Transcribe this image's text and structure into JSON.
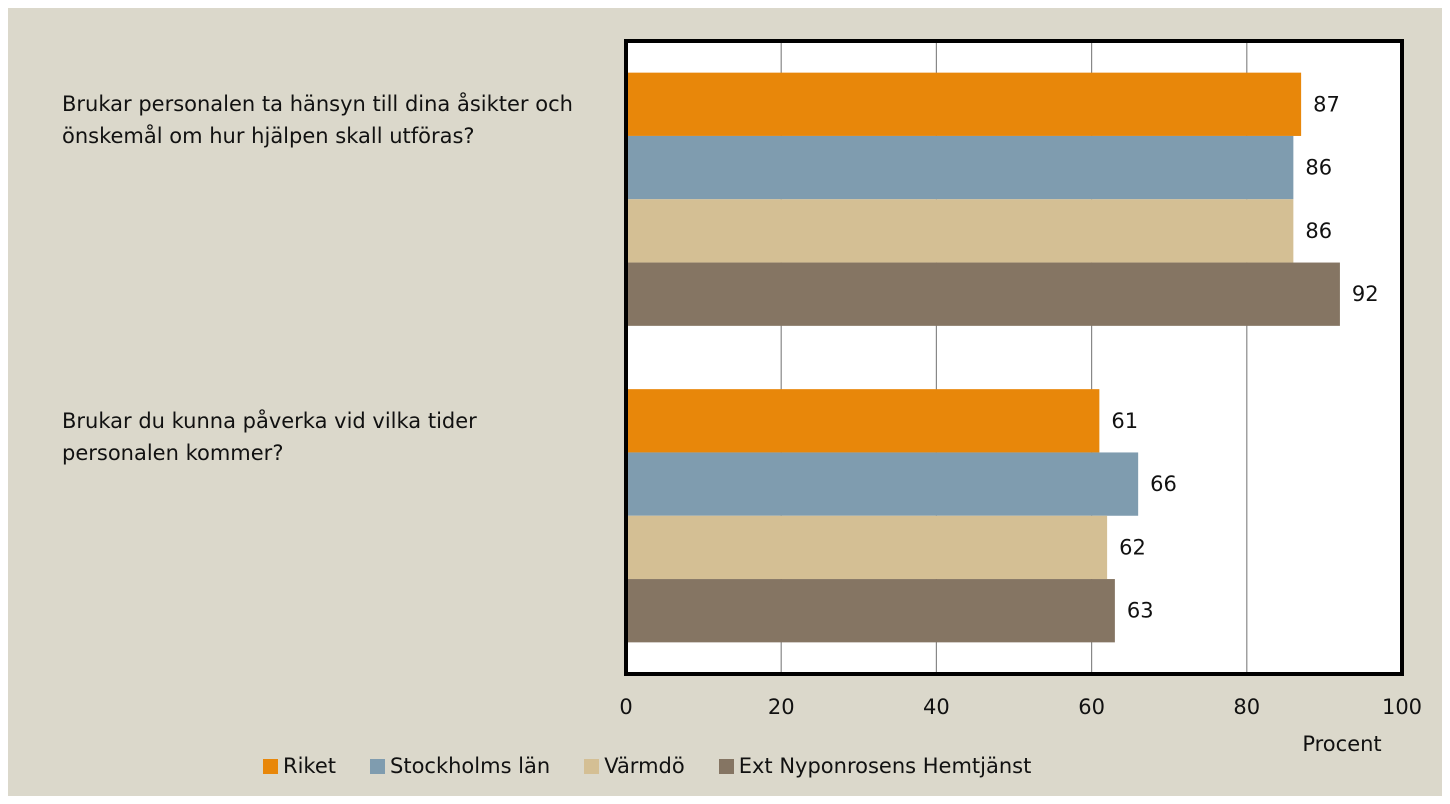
{
  "chart_data": {
    "type": "bar",
    "orientation": "horizontal",
    "categories": [
      "Brukar personalen ta hänsyn till dina åsikter och önskemål om hur hjälpen skall utföras?",
      "Brukar du kunna påverka vid vilka tider personalen kommer?"
    ],
    "series": [
      {
        "name": "Riket",
        "color": "#e8870a",
        "values": [
          87,
          61
        ]
      },
      {
        "name": "Stockholms län",
        "color": "#7f9caf",
        "values": [
          86,
          66
        ]
      },
      {
        "name": "Värmdö",
        "color": "#d4bf94",
        "values": [
          86,
          62
        ]
      },
      {
        "name": "Ext Nyponrosens Hemtjänst",
        "color": "#857563",
        "values": [
          92,
          63
        ]
      }
    ],
    "x_label": "Procent",
    "xlim": [
      0,
      100
    ],
    "xticks": [
      0,
      20,
      40,
      60,
      80,
      100
    ],
    "grid": true,
    "legend": "bottom"
  }
}
